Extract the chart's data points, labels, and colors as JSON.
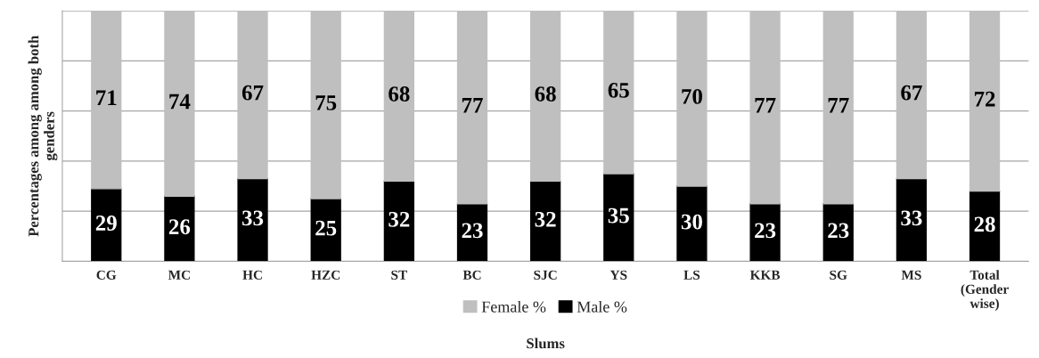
{
  "chart_data": {
    "type": "bar",
    "stacked": true,
    "xlabel": "Slums",
    "ylabel": "Percentages among among both\ngenders",
    "categories": [
      "CG",
      "MC",
      "HC",
      "HZC",
      "ST",
      "BC",
      "SJC",
      "YS",
      "LS",
      "KKB",
      "SG",
      "MS",
      "Total\n(Gender\nwise)"
    ],
    "series": [
      {
        "name": "Male %",
        "color": "#000000",
        "values": [
          29,
          26,
          33,
          25,
          32,
          23,
          32,
          35,
          30,
          23,
          23,
          33,
          28
        ]
      },
      {
        "name": "Female %",
        "color": "#bfbfbf",
        "values": [
          71,
          74,
          67,
          75,
          68,
          77,
          68,
          65,
          70,
          77,
          77,
          67,
          72
        ]
      }
    ],
    "ylim": [
      0,
      100
    ],
    "yticks": [
      {
        "value": 0,
        "label": null
      },
      {
        "value": 20,
        "label": null
      },
      {
        "value": 40,
        "label": null
      },
      {
        "value": 60,
        "label": null
      },
      {
        "value": 80,
        "label": null
      },
      {
        "value": 100,
        "label": null
      }
    ],
    "tick_labels": "x",
    "grid": "y",
    "legend": "bottom",
    "data_labels": true
  }
}
